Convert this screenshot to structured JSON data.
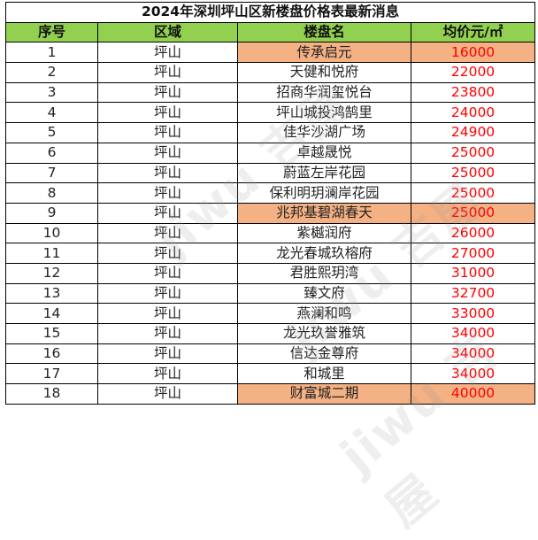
{
  "title": "2024年深圳坪山区新楼盘价格表最新消息",
  "headers": {
    "index": "序号",
    "district": "区域",
    "project": "楼盘名",
    "price": "均价元/㎡"
  },
  "rows": [
    {
      "index": "1",
      "district": "坪山",
      "project": "传承启元",
      "price": "16000",
      "highlight": true
    },
    {
      "index": "2",
      "district": "坪山",
      "project": "天健和悦府",
      "price": "22000",
      "highlight": false
    },
    {
      "index": "3",
      "district": "坪山",
      "project": "招商华润玺悦台",
      "price": "23800",
      "highlight": false
    },
    {
      "index": "4",
      "district": "坪山",
      "project": "坪山城投鸿鹄里",
      "price": "24000",
      "highlight": false
    },
    {
      "index": "5",
      "district": "坪山",
      "project": "佳华沙湖广场",
      "price": "24900",
      "highlight": false
    },
    {
      "index": "6",
      "district": "坪山",
      "project": "卓越晟悦",
      "price": "25000",
      "highlight": false
    },
    {
      "index": "7",
      "district": "坪山",
      "project": "蔚蓝左岸花园",
      "price": "25000",
      "highlight": false
    },
    {
      "index": "8",
      "district": "坪山",
      "project": "保利明玥澜岸花园",
      "price": "25000",
      "highlight": false
    },
    {
      "index": "9",
      "district": "坪山",
      "project": "兆邦基碧湖春天",
      "price": "25000",
      "highlight": true
    },
    {
      "index": "10",
      "district": "坪山",
      "project": "紫樾润府",
      "price": "26000",
      "highlight": false
    },
    {
      "index": "11",
      "district": "坪山",
      "project": "龙光春城玖榕府",
      "price": "27000",
      "highlight": false
    },
    {
      "index": "12",
      "district": "坪山",
      "project": "君胜熙玥湾",
      "price": "31000",
      "highlight": false
    },
    {
      "index": "13",
      "district": "坪山",
      "project": "臻文府",
      "price": "32700",
      "highlight": false
    },
    {
      "index": "14",
      "district": "坪山",
      "project": "燕澜和鸣",
      "price": "33000",
      "highlight": false
    },
    {
      "index": "15",
      "district": "坪山",
      "project": "龙光玖誉雅筑",
      "price": "34000",
      "highlight": false
    },
    {
      "index": "16",
      "district": "坪山",
      "project": "信达金尊府",
      "price": "34000",
      "highlight": false
    },
    {
      "index": "17",
      "district": "坪山",
      "project": "和城里",
      "price": "34000",
      "highlight": false
    },
    {
      "index": "18",
      "district": "坪山",
      "project": "财富城二期",
      "price": "40000",
      "highlight": true
    }
  ],
  "watermark": "jiwu 吉屋",
  "colors": {
    "header_bg": "#92d050",
    "highlight_bg": "#f4b183",
    "price_text": "#ff0000"
  }
}
